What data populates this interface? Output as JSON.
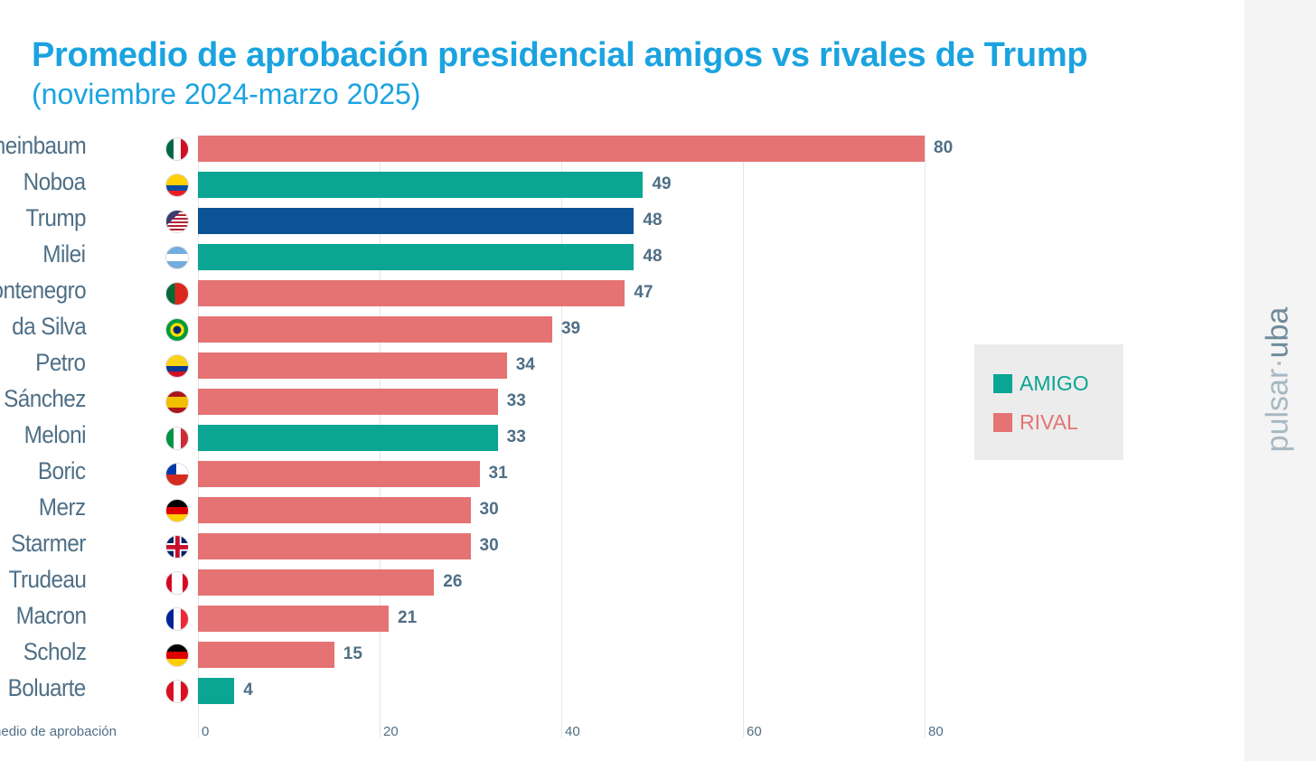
{
  "chart_data": {
    "type": "bar",
    "orientation": "horizontal",
    "title": "Promedio de aprobación presidencial amigos vs rivales de Trump",
    "subtitle": "(noviembre 2024-marzo 2025)",
    "xlabel": "Promedio de aprobación",
    "xlim": [
      0,
      80
    ],
    "xticks": [
      "0",
      "20",
      "40",
      "60",
      "80"
    ],
    "grid": true,
    "categories": [
      "Sheinbaum",
      "Noboa",
      "Trump",
      "Milei",
      "Montenegro",
      "da Silva",
      "Petro",
      "Sánchez",
      "Meloni",
      "Boric",
      "Merz",
      "Starmer",
      "Trudeau",
      "Macron",
      "Scholz",
      "Boluarte"
    ],
    "values": [
      80,
      49,
      48,
      48,
      47,
      39,
      34,
      33,
      33,
      31,
      30,
      30,
      26,
      21,
      15,
      4
    ],
    "groups": [
      "RIVAL",
      "AMIGO",
      "TRUMP",
      "AMIGO",
      "RIVAL",
      "RIVAL",
      "RIVAL",
      "RIVAL",
      "AMIGO",
      "RIVAL",
      "RIVAL",
      "RIVAL",
      "RIVAL",
      "RIVAL",
      "RIVAL",
      "AMIGO"
    ],
    "flags": [
      "mexico-flag",
      "ecuador-flag",
      "usa-flag",
      "argentina-flag",
      "portugal-flag",
      "brazil-flag",
      "colombia-flag",
      "spain-flag",
      "italy-flag",
      "chile-flag",
      "germany-flag",
      "uk-flag",
      "canada-flag",
      "france-flag",
      "germany-flag",
      "peru-flag"
    ],
    "legend": {
      "position": "right",
      "items": [
        {
          "label": "AMIGO",
          "color": "#0aa593"
        },
        {
          "label": "RIVAL",
          "color": "#e57373"
        }
      ]
    },
    "colors": {
      "AMIGO": "#0aa593",
      "RIVAL": "#e57373",
      "TRUMP": "#0b5394"
    }
  },
  "watermark": {
    "part1": "pulsar",
    "part2": "uba"
  }
}
